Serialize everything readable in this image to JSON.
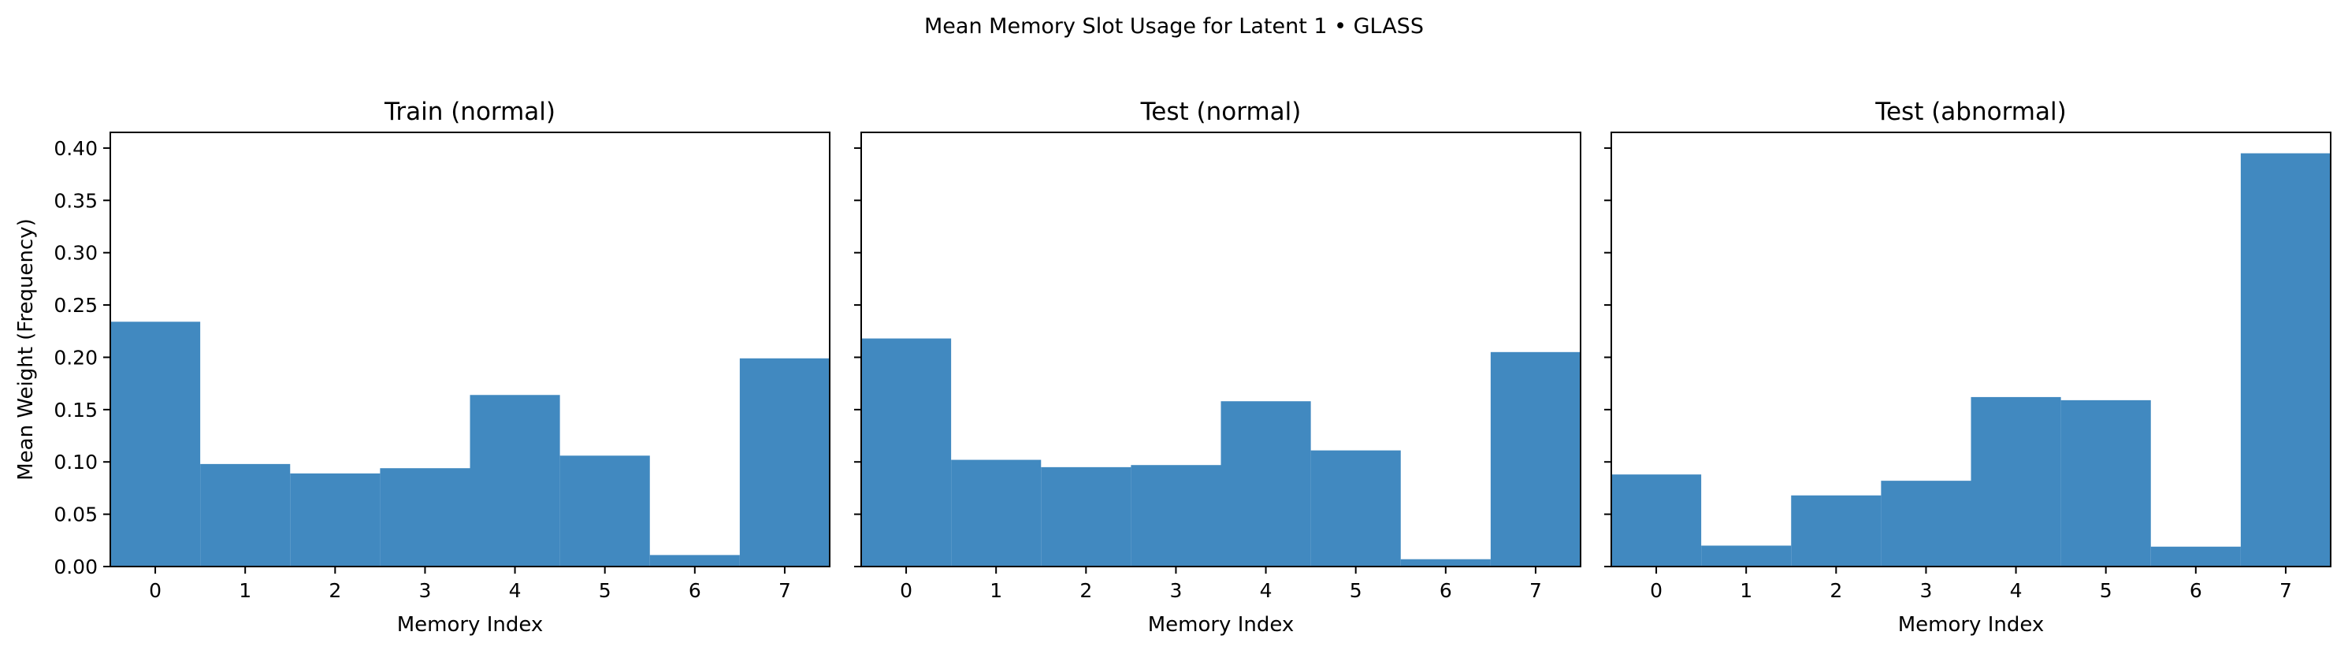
{
  "figure": {
    "title": "Mean Memory Slot Usage for Latent 1 • GLASS"
  },
  "colors": {
    "bar": "#4189c0",
    "axis": "#000000",
    "background": "#ffffff"
  },
  "chart_data": [
    {
      "type": "bar",
      "title": "Train (normal)",
      "xlabel": "Memory Index",
      "ylabel": "Mean Weight (Frequency)",
      "categories": [
        "0",
        "1",
        "2",
        "3",
        "4",
        "5",
        "6",
        "7"
      ],
      "values": [
        0.234,
        0.098,
        0.089,
        0.094,
        0.164,
        0.106,
        0.011,
        0.199
      ],
      "ylim": [
        0,
        0.415
      ],
      "yticks": [
        "0.00",
        "0.05",
        "0.10",
        "0.15",
        "0.20",
        "0.25",
        "0.30",
        "0.35",
        "0.40"
      ],
      "grid": false
    },
    {
      "type": "bar",
      "title": "Test (normal)",
      "xlabel": "Memory Index",
      "ylabel": "",
      "categories": [
        "0",
        "1",
        "2",
        "3",
        "4",
        "5",
        "6",
        "7"
      ],
      "values": [
        0.218,
        0.102,
        0.095,
        0.097,
        0.158,
        0.111,
        0.007,
        0.205
      ],
      "ylim": [
        0,
        0.415
      ],
      "yticks": [],
      "grid": false
    },
    {
      "type": "bar",
      "title": "Test (abnormal)",
      "xlabel": "Memory Index",
      "ylabel": "",
      "categories": [
        "0",
        "1",
        "2",
        "3",
        "4",
        "5",
        "6",
        "7"
      ],
      "values": [
        0.088,
        0.02,
        0.068,
        0.082,
        0.162,
        0.159,
        0.019,
        0.395
      ],
      "ylim": [
        0,
        0.415
      ],
      "yticks": [],
      "grid": false
    }
  ]
}
